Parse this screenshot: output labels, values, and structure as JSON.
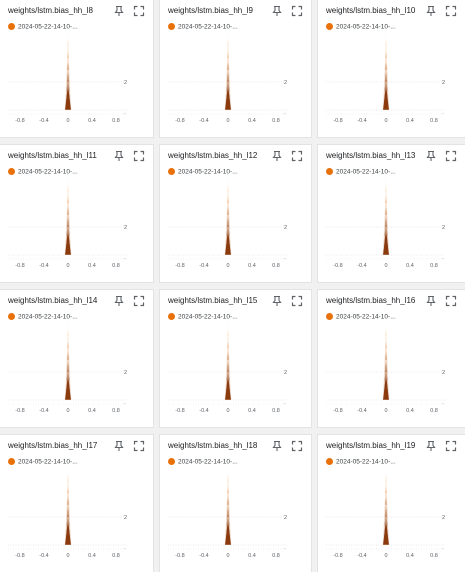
{
  "colors": {
    "run": "#e8710a",
    "histogram_front": "#8a3a0c",
    "histogram_back": "#fdc28a",
    "axis_text": "#5f6368"
  },
  "icons": {
    "pin": "pin-icon",
    "fullscreen": "fullscreen-icon"
  },
  "cards": [
    {
      "title": "weights/lstm.bias_hh_l8",
      "run": "2024-05-22-14-10-..."
    },
    {
      "title": "weights/lstm.bias_hh_l9",
      "run": "2024-05-22-14-10-..."
    },
    {
      "title": "weights/lstm.bias_hh_l10",
      "run": "2024-05-22-14-10-..."
    },
    {
      "title": "weights/lstm.bias_hh_l11",
      "run": "2024-05-22-14-10-..."
    },
    {
      "title": "weights/lstm.bias_hh_l12",
      "run": "2024-05-22-14-10-..."
    },
    {
      "title": "weights/lstm.bias_hh_l13",
      "run": "2024-05-22-14-10-..."
    },
    {
      "title": "weights/lstm.bias_hh_l14",
      "run": "2024-05-22-14-10-..."
    },
    {
      "title": "weights/lstm.bias_hh_l15",
      "run": "2024-05-22-14-10-..."
    },
    {
      "title": "weights/lstm.bias_hh_l16",
      "run": "2024-05-22-14-10-..."
    },
    {
      "title": "weights/lstm.bias_hh_l17",
      "run": "2024-05-22-14-10-..."
    },
    {
      "title": "weights/lstm.bias_hh_l18",
      "run": "2024-05-22-14-10-..."
    },
    {
      "title": "weights/lstm.bias_hh_l19",
      "run": "2024-05-22-14-10-..."
    }
  ],
  "chart_data": {
    "type": "histogram",
    "x_ticks": [
      "-0.8",
      "-0.4",
      "0",
      "0.4",
      "0.8"
    ],
    "x_tick_values": [
      -0.8,
      -0.4,
      0,
      0.4,
      0.8
    ],
    "xlim": [
      -1.0,
      1.0
    ],
    "y_ticks": [
      "2"
    ],
    "peak_x": 0,
    "num_steps": 5
  }
}
